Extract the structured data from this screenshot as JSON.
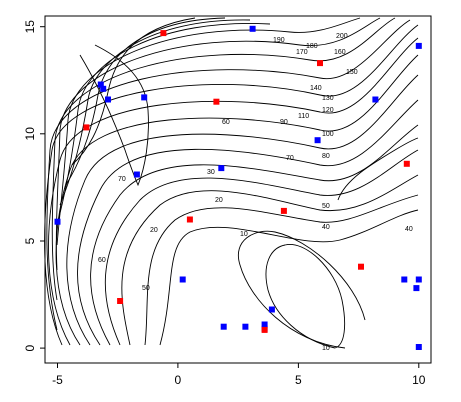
{
  "chart_data": {
    "type": "scatter",
    "title": "",
    "xlabel": "",
    "ylabel": "",
    "xlim": [
      -5.5,
      10.2
    ],
    "ylim": [
      -0.6,
      15.5
    ],
    "x_ticks": [
      -5,
      0,
      5,
      10
    ],
    "y_ticks": [
      0,
      5,
      10,
      15
    ],
    "x_tick_labels": [
      "-5",
      "0",
      "5",
      "10"
    ],
    "y_tick_labels": [
      "0",
      "5",
      "10",
      "15"
    ],
    "grid": false,
    "legend": "none",
    "colors": {
      "blue": "#0000ff",
      "red": "#ff0000",
      "contour": "#000000"
    },
    "contour_levels": [
      10,
      20,
      30,
      40,
      50,
      60,
      70,
      80,
      90,
      100,
      110,
      120,
      130,
      140,
      150,
      160,
      170,
      180,
      190,
      200
    ],
    "contour_level_labels": [
      "10",
      "10",
      "20",
      "20",
      "30",
      "40",
      "40",
      "50",
      "50",
      "60",
      "60",
      "70",
      "70",
      "80",
      "90",
      "100",
      "110",
      "120",
      "130",
      "140",
      "150",
      "160",
      "170",
      "180",
      "190",
      "200"
    ],
    "series": [
      {
        "color": "#0000ff",
        "marker": "square",
        "points": [
          [
            -5.0,
            5.9
          ],
          [
            -3.2,
            12.3
          ],
          [
            -3.1,
            12.1
          ],
          [
            -2.9,
            11.6
          ],
          [
            -1.4,
            11.7
          ],
          [
            -1.7,
            8.1
          ],
          [
            3.1,
            14.9
          ],
          [
            10.0,
            14.1
          ],
          [
            8.2,
            11.6
          ],
          [
            5.8,
            9.7
          ],
          [
            1.8,
            8.4
          ],
          [
            0.2,
            3.2
          ],
          [
            1.9,
            1.0
          ],
          [
            2.8,
            1.0
          ],
          [
            3.6,
            1.1
          ],
          [
            3.6,
            0.9
          ],
          [
            3.9,
            1.8
          ],
          [
            9.4,
            3.2
          ],
          [
            10.0,
            3.2
          ],
          [
            9.9,
            2.8
          ],
          [
            10.0,
            0.05
          ]
        ]
      },
      {
        "color": "#ff0000",
        "marker": "square",
        "points": [
          [
            -0.6,
            14.7
          ],
          [
            5.9,
            13.3
          ],
          [
            -3.8,
            10.3
          ],
          [
            1.6,
            11.5
          ],
          [
            9.5,
            8.6
          ],
          [
            0.5,
            6.0
          ],
          [
            4.4,
            6.4
          ],
          [
            7.6,
            3.8
          ],
          [
            -2.4,
            2.2
          ],
          [
            3.6,
            0.85
          ]
        ]
      }
    ]
  }
}
